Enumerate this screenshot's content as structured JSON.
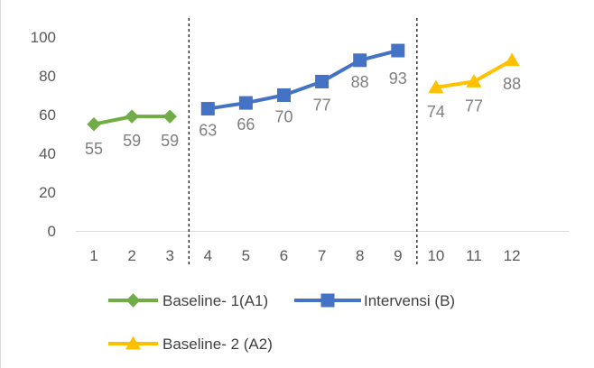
{
  "chart_data": {
    "type": "line",
    "ylim": [
      0,
      100
    ],
    "yticks": [
      0,
      20,
      40,
      60,
      80,
      100
    ],
    "categories": [
      "1",
      "2",
      "3",
      "4",
      "5",
      "6",
      "7",
      "8",
      "9",
      "10",
      "11",
      "12"
    ],
    "grid": false,
    "legend_position": "bottom",
    "phase_dividers_after_category": [
      "3",
      "9"
    ],
    "series": [
      {
        "name": "Baseline- 1(A1)",
        "color": "#70AD47",
        "marker": "diamond",
        "x": [
          "1",
          "2",
          "3"
        ],
        "values": [
          55,
          59,
          59
        ]
      },
      {
        "name": "Intervensi (B)",
        "color": "#4472C4",
        "marker": "square",
        "x": [
          "4",
          "5",
          "6",
          "7",
          "8",
          "9"
        ],
        "values": [
          63,
          66,
          70,
          77,
          88,
          93
        ]
      },
      {
        "name": "Baseline- 2 (A2)",
        "color": "#FFC000",
        "marker": "triangle",
        "x": [
          "10",
          "11",
          "12"
        ],
        "values": [
          74,
          77,
          88
        ]
      }
    ]
  }
}
